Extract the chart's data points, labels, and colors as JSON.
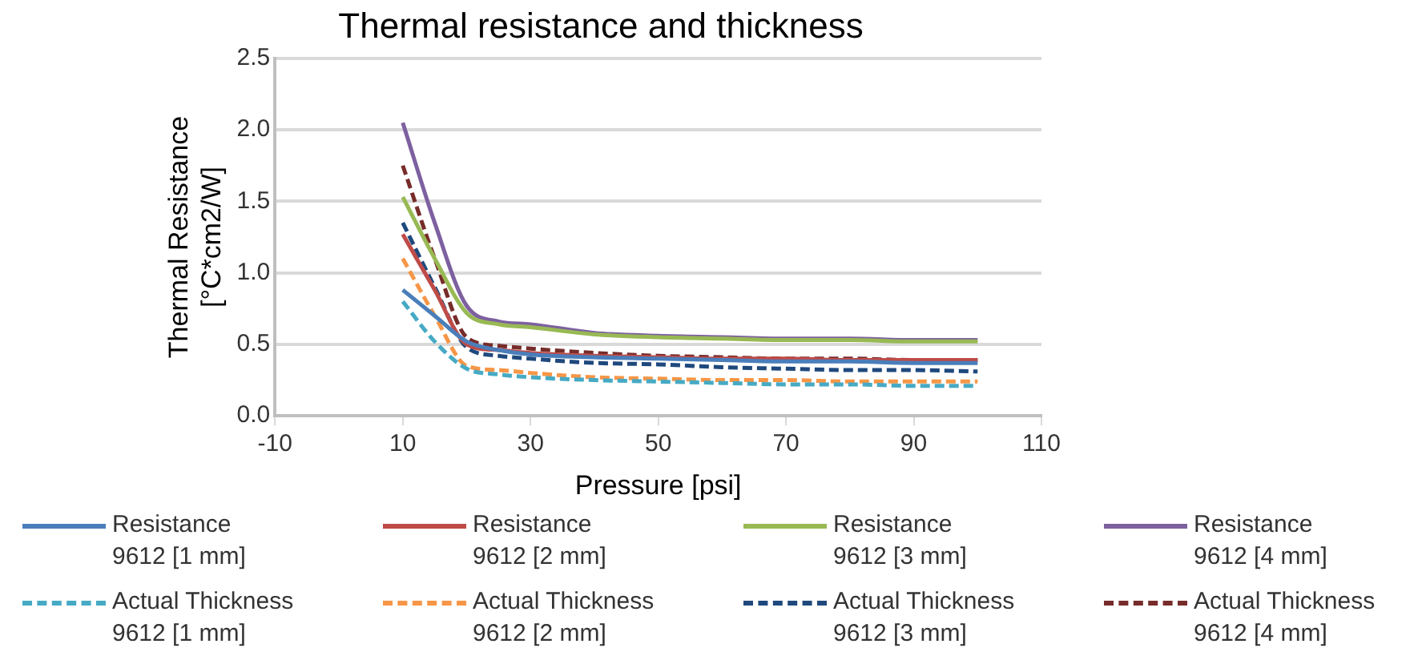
{
  "chart_data": {
    "type": "line",
    "title": "Thermal resistance and thickness",
    "xlabel": "Pressure [psi]",
    "ylabel": "Thermal Resistance\n[°C*cm2/W]",
    "x": [
      10,
      15,
      20,
      25,
      30,
      40,
      50,
      60,
      70,
      80,
      90,
      100
    ],
    "xlim": [
      -10,
      110
    ],
    "xticks": [
      -10,
      10,
      30,
      50,
      70,
      90,
      110
    ],
    "ylim": [
      0,
      2.5
    ],
    "yticks": [
      {
        "value": 0,
        "label": "0.0"
      },
      {
        "value": 0.5,
        "label": "0.5"
      },
      {
        "value": 1,
        "label": "1.0"
      },
      {
        "value": 1.5,
        "label": "1.5"
      },
      {
        "value": 2,
        "label": "2.0"
      },
      {
        "value": 2.5,
        "label": "2.5"
      }
    ],
    "grid": "y",
    "legend": "bottom",
    "marker": "none",
    "series": [
      {
        "name": "Resistance\n9612 [1 mm]",
        "color": "#4a7ebb",
        "line_style": "solid",
        "values": [
          0.88,
          0.7,
          0.52,
          0.46,
          0.43,
          0.41,
          0.4,
          0.39,
          0.38,
          0.38,
          0.37,
          0.37
        ]
      },
      {
        "name": "Resistance\n9612 [2 mm]",
        "color": "#be4b48",
        "line_style": "solid",
        "values": [
          1.27,
          0.88,
          0.5,
          0.46,
          0.44,
          0.42,
          0.41,
          0.4,
          0.4,
          0.39,
          0.39,
          0.39
        ]
      },
      {
        "name": "Resistance\n9612 [3 mm]",
        "color": "#98b954",
        "line_style": "solid",
        "values": [
          1.53,
          1.1,
          0.72,
          0.64,
          0.62,
          0.57,
          0.55,
          0.54,
          0.53,
          0.53,
          0.52,
          0.52
        ]
      },
      {
        "name": "Resistance\n9612 [4 mm]",
        "color": "#7d60a0",
        "line_style": "solid",
        "values": [
          2.05,
          1.35,
          0.77,
          0.66,
          0.64,
          0.58,
          0.56,
          0.55,
          0.54,
          0.54,
          0.53,
          0.53
        ]
      },
      {
        "name": "Actual Thickness\n9612 [1 mm]",
        "color": "#46aac5",
        "line_style": "dashed",
        "values": [
          0.8,
          0.52,
          0.33,
          0.29,
          0.27,
          0.25,
          0.24,
          0.23,
          0.22,
          0.22,
          0.21,
          0.21
        ]
      },
      {
        "name": "Actual Thickness\n9612 [2 mm]",
        "color": "#f79646",
        "line_style": "dashed",
        "values": [
          1.1,
          0.7,
          0.35,
          0.32,
          0.3,
          0.27,
          0.26,
          0.25,
          0.25,
          0.24,
          0.24,
          0.24
        ]
      },
      {
        "name": "Actual Thickness\n9612 [3 mm]",
        "color": "#1f497d",
        "line_style": "dashed",
        "values": [
          1.35,
          0.9,
          0.48,
          0.42,
          0.4,
          0.37,
          0.36,
          0.34,
          0.33,
          0.32,
          0.32,
          0.31
        ]
      },
      {
        "name": "Actual Thickness\n9612 [4 mm]",
        "color": "#772c2a",
        "line_style": "dashed",
        "values": [
          1.75,
          1.1,
          0.55,
          0.49,
          0.47,
          0.44,
          0.42,
          0.41,
          0.4,
          0.4,
          0.39,
          0.39
        ]
      }
    ]
  }
}
